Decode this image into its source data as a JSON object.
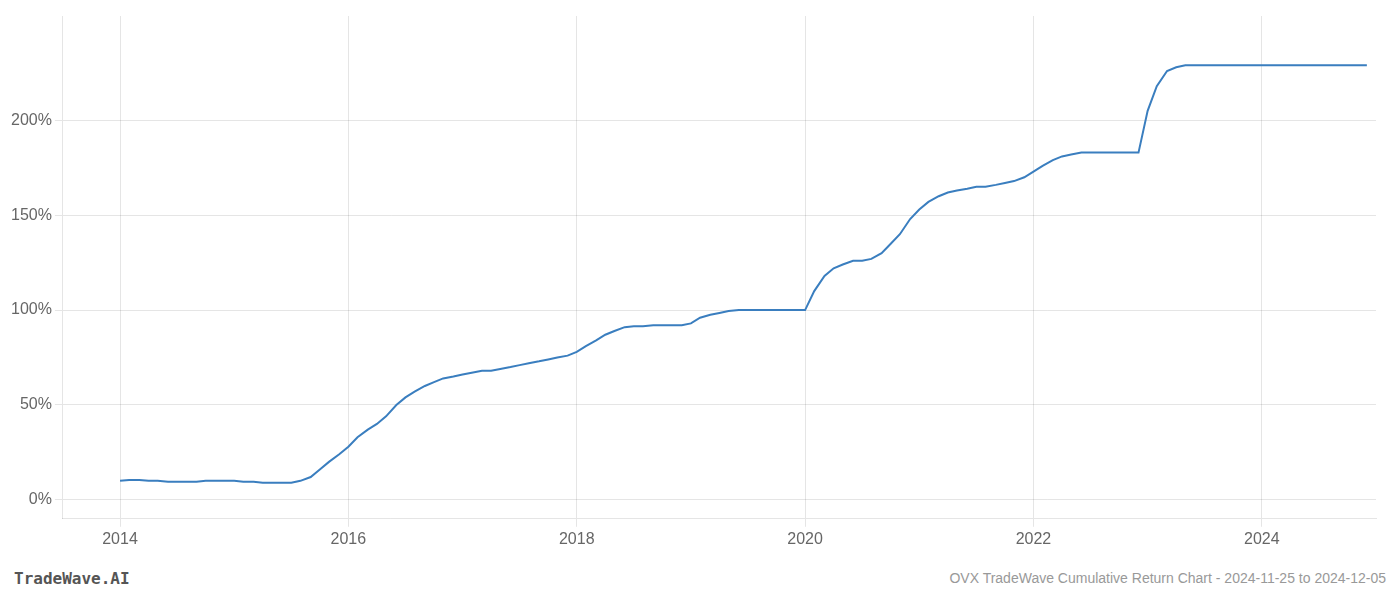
{
  "chart_data": {
    "type": "line",
    "title": "OVX TradeWave Cumulative Return Chart - 2024-11-25 to 2024-12-05",
    "annotations": [
      "TradeWave.AI"
    ],
    "x": [
      2014.0,
      2014.08,
      2014.17,
      2014.25,
      2014.33,
      2014.42,
      2014.5,
      2014.58,
      2014.67,
      2014.75,
      2014.83,
      2014.92,
      2015.0,
      2015.08,
      2015.17,
      2015.25,
      2015.33,
      2015.42,
      2015.5,
      2015.58,
      2015.67,
      2015.75,
      2015.83,
      2015.92,
      2016.0,
      2016.08,
      2016.17,
      2016.25,
      2016.33,
      2016.42,
      2016.5,
      2016.58,
      2016.67,
      2016.75,
      2016.83,
      2016.92,
      2017.0,
      2017.08,
      2017.17,
      2017.25,
      2017.33,
      2017.42,
      2017.5,
      2017.58,
      2017.67,
      2017.75,
      2017.83,
      2017.92,
      2018.0,
      2018.08,
      2018.17,
      2018.25,
      2018.33,
      2018.42,
      2018.5,
      2018.58,
      2018.67,
      2018.75,
      2018.83,
      2018.92,
      2019.0,
      2019.08,
      2019.17,
      2019.25,
      2019.33,
      2019.42,
      2019.5,
      2019.58,
      2019.67,
      2019.75,
      2019.83,
      2019.92,
      2020.0,
      2020.08,
      2020.17,
      2020.25,
      2020.33,
      2020.42,
      2020.5,
      2020.58,
      2020.67,
      2020.75,
      2020.83,
      2020.92,
      2021.0,
      2021.08,
      2021.17,
      2021.25,
      2021.33,
      2021.42,
      2021.5,
      2021.58,
      2021.67,
      2021.75,
      2021.83,
      2021.92,
      2022.0,
      2022.08,
      2022.17,
      2022.25,
      2022.33,
      2022.42,
      2022.5,
      2022.58,
      2022.67,
      2022.75,
      2022.83,
      2022.92,
      2023.0,
      2023.08,
      2023.17,
      2023.25,
      2023.33,
      2023.42,
      2023.5,
      2023.58,
      2023.67,
      2023.75,
      2023.83,
      2023.92,
      2024.0,
      2024.08,
      2024.17,
      2024.25,
      2024.33,
      2024.42,
      2024.5,
      2024.58,
      2024.67,
      2024.75,
      2024.83,
      2024.92
    ],
    "values": [
      10,
      10.5,
      10.5,
      10,
      10,
      9.5,
      9.5,
      9.5,
      9.5,
      10,
      10,
      10,
      10,
      9.5,
      9.5,
      9,
      9,
      9,
      9,
      10,
      12,
      16,
      20,
      24,
      28,
      33,
      37,
      40,
      44,
      50,
      54,
      57,
      60,
      62,
      64,
      65,
      66,
      67,
      68,
      68,
      69,
      70,
      71,
      72,
      73,
      74,
      75,
      76,
      78,
      81,
      84,
      87,
      89,
      91,
      91.5,
      91.5,
      92,
      92,
      92,
      92,
      93,
      96,
      97.5,
      98.5,
      99.5,
      100,
      100,
      100,
      100,
      100,
      100,
      100,
      100,
      110,
      118,
      122,
      124,
      126,
      126,
      127,
      130,
      135,
      140,
      148,
      153,
      157,
      160,
      162,
      163,
      164,
      165,
      165,
      166,
      167,
      168,
      170,
      173,
      176,
      179,
      181,
      182,
      183,
      183,
      183,
      183,
      183,
      183,
      183,
      205,
      218,
      226,
      228,
      229,
      229,
      229,
      229,
      229,
      229,
      229,
      229,
      229,
      229,
      229,
      229,
      229,
      229,
      229,
      229,
      229,
      229,
      229,
      229
    ],
    "color": "#3a7ebf",
    "xlim": [
      2013.5,
      2025.0
    ],
    "xticks": [
      2014,
      2016,
      2018,
      2020,
      2022,
      2024
    ],
    "ylim": [
      -10,
      255
    ],
    "yticks": [
      {
        "value": 0,
        "label": "0%"
      },
      {
        "value": 50,
        "label": "50%"
      },
      {
        "value": 100,
        "label": "100%"
      },
      {
        "value": 150,
        "label": "150%"
      },
      {
        "value": 200,
        "label": "200%"
      }
    ],
    "grid": true
  }
}
